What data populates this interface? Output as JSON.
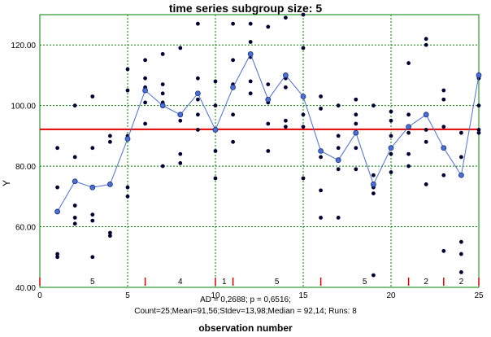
{
  "chart_data": {
    "type": "line",
    "title": "time series subgroup size: 5",
    "xlabel": "observation number",
    "ylabel": "Y",
    "xlim": [
      0,
      25
    ],
    "ylim": [
      40,
      130
    ],
    "x_ticks": [
      "0",
      "5",
      "10",
      "15",
      "20",
      "25"
    ],
    "y_ticks": [
      "40.00",
      "60.00",
      "80.00",
      "100.00",
      "120.00"
    ],
    "grid": true,
    "center_line": {
      "value": 92.14,
      "color": "#e00000"
    },
    "series": [
      {
        "type": "line",
        "color": "#4a6fd6",
        "x": [
          1,
          2,
          3,
          4,
          5,
          6,
          7,
          8,
          9,
          10,
          11,
          12,
          13,
          14,
          15,
          16,
          17,
          18,
          19,
          20,
          21,
          22,
          23,
          24,
          25
        ],
        "values": [
          65,
          75,
          73,
          74,
          89,
          105,
          100,
          97,
          104,
          92,
          106,
          117,
          102,
          110,
          103,
          85,
          82,
          91,
          74,
          86,
          93,
          97,
          86,
          77,
          110
        ]
      }
    ],
    "observations": [
      {
        "x": 1,
        "y": [
          86,
          73,
          65,
          51,
          50
        ]
      },
      {
        "x": 2,
        "y": [
          100,
          83,
          67,
          63,
          61
        ]
      },
      {
        "x": 3,
        "y": [
          103,
          86,
          64,
          62,
          50
        ]
      },
      {
        "x": 4,
        "y": [
          90,
          88,
          74,
          58,
          57
        ]
      },
      {
        "x": 5,
        "y": [
          112,
          105,
          90,
          73,
          70
        ]
      },
      {
        "x": 6,
        "y": [
          115,
          109,
          106,
          101,
          94
        ]
      },
      {
        "x": 7,
        "y": [
          117,
          107,
          104,
          101,
          80
        ]
      },
      {
        "x": 8,
        "y": [
          119,
          97,
          95,
          84,
          81
        ]
      },
      {
        "x": 9,
        "y": [
          127,
          109,
          102,
          97,
          92
        ]
      },
      {
        "x": 10,
        "y": [
          108,
          100,
          92,
          85,
          76
        ]
      },
      {
        "x": 11,
        "y": [
          127,
          115,
          107,
          97,
          88
        ]
      },
      {
        "x": 12,
        "y": [
          127,
          121,
          116,
          108,
          104
        ]
      },
      {
        "x": 13,
        "y": [
          126,
          107,
          101,
          94,
          85
        ]
      },
      {
        "x": 14,
        "y": [
          129,
          109,
          106,
          95,
          93
        ]
      },
      {
        "x": 15,
        "y": [
          130,
          119,
          97,
          93,
          76
        ]
      },
      {
        "x": 16,
        "y": [
          103,
          99,
          83,
          72,
          63
        ]
      },
      {
        "x": 17,
        "y": [
          100,
          90,
          86,
          79,
          63
        ]
      },
      {
        "x": 18,
        "y": [
          102,
          97,
          94,
          86,
          79
        ]
      },
      {
        "x": 19,
        "y": [
          100,
          77,
          73,
          71,
          44
        ]
      },
      {
        "x": 20,
        "y": [
          98,
          95,
          90,
          84,
          78
        ]
      },
      {
        "x": 21,
        "y": [
          114,
          97,
          91,
          84,
          80
        ]
      },
      {
        "x": 22,
        "y": [
          122,
          120,
          92,
          88,
          74
        ]
      },
      {
        "x": 23,
        "y": [
          105,
          102,
          93,
          77,
          52
        ]
      },
      {
        "x": 24,
        "y": [
          91,
          83,
          55,
          51,
          45
        ]
      },
      {
        "x": 25,
        "y": [
          110,
          109,
          100,
          92,
          91
        ]
      }
    ],
    "run_markers": [
      0,
      6,
      10,
      11,
      16,
      21,
      23,
      25
    ],
    "run_labels": [
      {
        "x": 3,
        "text": "5"
      },
      {
        "x": 8,
        "text": "4"
      },
      {
        "x": 10.5,
        "text": "1"
      },
      {
        "x": 13.5,
        "text": "5"
      },
      {
        "x": 18.5,
        "text": "5"
      },
      {
        "x": 22,
        "text": "2"
      },
      {
        "x": 24,
        "text": "2"
      }
    ]
  },
  "stats": {
    "line1": "AD = 0,2688; p = 0,6516;",
    "line2": "Count=25;Mean=91,56;Stdev=13,98;Median = 92,14; Runs: 8"
  }
}
